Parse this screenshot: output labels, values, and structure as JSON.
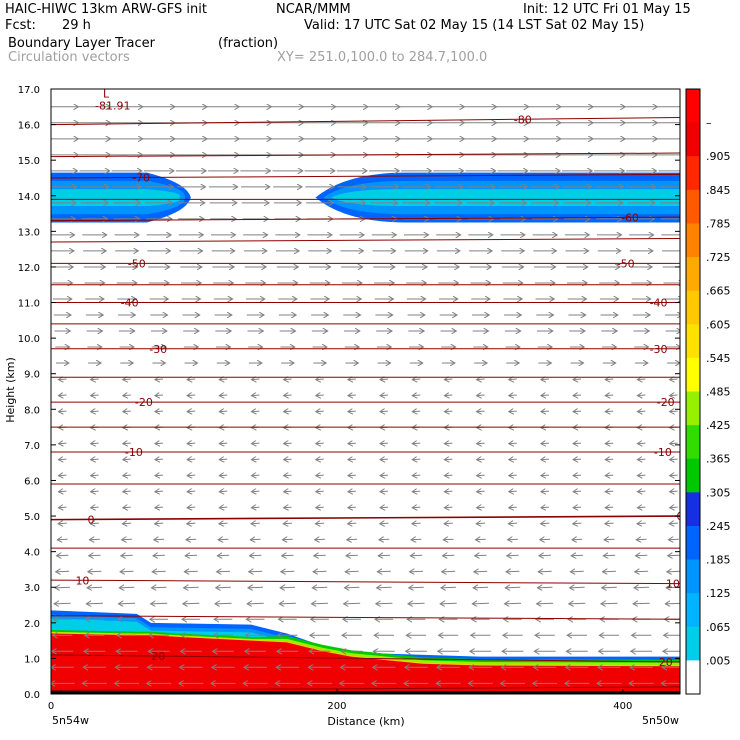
{
  "header": {
    "model": "HAIC-HIWC 13km ARW-GFS init",
    "org": "NCAR/MMM",
    "init": "Init: 12 UTC Fri 01 May 15",
    "fcst_label": "Fcst:",
    "fcst_value": "29 h",
    "valid": "Valid: 17 UTC Sat 02 May 15 (14 LST Sat 02 May 15)",
    "field_name": "Boundary Layer Tracer",
    "field_units": "(fraction)",
    "vector_name": "Circulation vectors",
    "xy_range": "XY= 251.0,100.0 to 284.7,100.0"
  },
  "chart_data": {
    "type": "heatmap",
    "title": "Boundary Layer Tracer (fraction)",
    "xlabel": "Distance (km)",
    "ylabel": "Height (km)",
    "xlim": [
      0,
      440
    ],
    "ylim": [
      0,
      17
    ],
    "x_ticks": [
      0,
      200,
      400
    ],
    "y_ticks": [
      "0.0",
      "1.0",
      "2.0",
      "3.0",
      "4.0",
      "5.0",
      "6.0",
      "7.0",
      "8.0",
      "9.0",
      "10.0",
      "11.0",
      "12.0",
      "13.0",
      "14.0",
      "15.0",
      "16.0",
      "17.0"
    ],
    "x_endpoint_labels": {
      "left": "5n54w",
      "right": "5n50w"
    },
    "colorbar": {
      "labels": [
        ".005",
        ".065",
        ".125",
        ".185",
        ".245",
        ".305",
        ".365",
        ".425",
        ".485",
        ".545",
        ".605",
        ".665",
        ".725",
        ".785",
        ".845",
        ".905",
        "–"
      ],
      "colors": [
        "#ffffff",
        "#00cde8",
        "#00b4ff",
        "#0094ff",
        "#0064ff",
        "#1430e0",
        "#00c800",
        "#32dc00",
        "#96f000",
        "#ffff00",
        "#ffe100",
        "#ffc800",
        "#ffaa00",
        "#ff8200",
        "#ff5a00",
        "#ff2800",
        "#f00000",
        "#ff0000"
      ]
    },
    "temperature_contours": {
      "levels": [
        {
          "value": -80,
          "y_left": 16.0,
          "y_right": 16.2,
          "labels": [
            {
              "text": "-80",
              "x": 330
            }
          ]
        },
        {
          "value": -75,
          "y_left": 15.1,
          "y_right": 15.2,
          "labels": []
        },
        {
          "value": -70,
          "y_left": 14.5,
          "y_right": 14.6,
          "labels": [
            {
              "text": "-70",
              "x": 63
            }
          ]
        },
        {
          "value": -65,
          "y_left": 13.9,
          "y_right": 13.9,
          "labels": []
        },
        {
          "value": -60,
          "y_left": 13.3,
          "y_right": 13.4,
          "labels": [
            {
              "text": "-60",
              "x": 405
            }
          ]
        },
        {
          "value": -55,
          "y_left": 12.7,
          "y_right": 12.8,
          "labels": []
        },
        {
          "value": -50,
          "y_left": 12.1,
          "y_right": 12.1,
          "labels": [
            {
              "text": "-50",
              "x": 60
            },
            {
              "text": "-50",
              "x": 402
            }
          ]
        },
        {
          "value": -45,
          "y_left": 11.5,
          "y_right": 11.5,
          "labels": []
        },
        {
          "value": -40,
          "y_left": 11.0,
          "y_right": 11.0,
          "labels": [
            {
              "text": "-40",
              "x": 55
            },
            {
              "text": "-40",
              "x": 425
            }
          ]
        },
        {
          "value": -35,
          "y_left": 10.4,
          "y_right": 10.4,
          "labels": []
        },
        {
          "value": -30,
          "y_left": 9.7,
          "y_right": 9.7,
          "labels": [
            {
              "text": "-30",
              "x": 75
            },
            {
              "text": "-30",
              "x": 425
            }
          ]
        },
        {
          "value": -25,
          "y_left": 8.9,
          "y_right": 8.9,
          "labels": []
        },
        {
          "value": -20,
          "y_left": 8.2,
          "y_right": 8.2,
          "labels": [
            {
              "text": "-20",
              "x": 65
            },
            {
              "text": "-20",
              "x": 430
            }
          ]
        },
        {
          "value": -15,
          "y_left": 7.5,
          "y_right": 7.5,
          "labels": []
        },
        {
          "value": -10,
          "y_left": 6.8,
          "y_right": 6.8,
          "labels": [
            {
              "text": "-10",
              "x": 58
            },
            {
              "text": "-10",
              "x": 428
            }
          ]
        },
        {
          "value": -5,
          "y_left": 5.9,
          "y_right": 5.9,
          "labels": []
        },
        {
          "value": 0,
          "y_left": 4.9,
          "y_right": 5.0,
          "labels": [
            {
              "text": "0",
              "x": 28
            },
            {
              "text": "0",
              "x": 440
            }
          ]
        },
        {
          "value": 5,
          "y_left": 4.1,
          "y_right": 4.1,
          "labels": []
        },
        {
          "value": 10,
          "y_left": 3.2,
          "y_right": 3.1,
          "labels": [
            {
              "text": "10",
              "x": 22
            },
            {
              "text": "10",
              "x": 435
            }
          ]
        },
        {
          "value": 15,
          "y_left": 2.2,
          "y_right": 2.1,
          "labels": []
        },
        {
          "value": 20,
          "y_left": 1.1,
          "y_right": 0.9,
          "labels": [
            {
              "text": "20",
              "x": 75
            },
            {
              "text": "20",
              "x": 430
            }
          ]
        },
        {
          "value": 25,
          "y_left": 0.1,
          "y_right": 0.2,
          "labels": []
        }
      ]
    },
    "low_marker": {
      "symbol": "L",
      "value": "-81.91",
      "x": 35,
      "y": 16.7
    },
    "tracer_regions": [
      {
        "name": "upper-left-plume",
        "level_fraction": 0.2,
        "x_start": 0,
        "x_end": 95,
        "y_center": 13.95,
        "half_depth": 0.7
      },
      {
        "name": "upper-right-plume",
        "level_fraction": 0.25,
        "x_start": 185,
        "x_end": 440,
        "y_center": 13.95,
        "half_depth": 0.7
      },
      {
        "name": "boundary-layer",
        "level_fraction": 1.0,
        "profile_top_km": [
          [
            0,
            1.7
          ],
          [
            60,
            1.65
          ],
          [
            70,
            1.65
          ],
          [
            90,
            1.6
          ],
          [
            140,
            1.5
          ],
          [
            165,
            1.45
          ],
          [
            190,
            1.2
          ],
          [
            210,
            1.05
          ],
          [
            260,
            0.85
          ],
          [
            300,
            0.8
          ],
          [
            440,
            0.78
          ]
        ],
        "inversion_top_km": [
          [
            0,
            2.35
          ],
          [
            60,
            2.25
          ],
          [
            70,
            2.0
          ],
          [
            140,
            1.95
          ],
          [
            165,
            1.7
          ],
          [
            190,
            1.35
          ],
          [
            220,
            1.15
          ],
          [
            300,
            1.05
          ],
          [
            440,
            1.05
          ]
        ]
      }
    ],
    "vectors": {
      "upper_levels_dir": "east",
      "lower_levels_dir": "west",
      "reversal_height_km": 9.0,
      "vector_color": "#808080"
    }
  }
}
